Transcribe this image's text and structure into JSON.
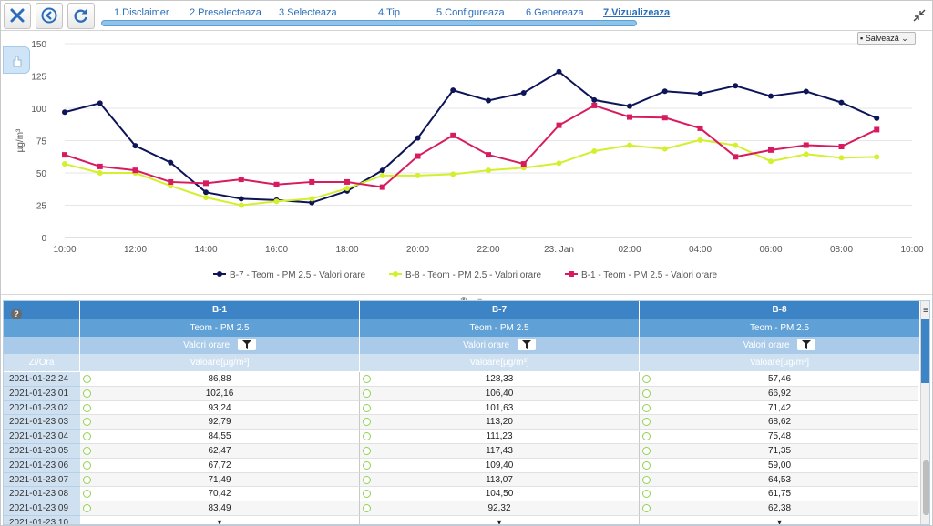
{
  "toolbar": {
    "close_icon": "close-icon",
    "back_icon": "back-circle-icon",
    "refresh_icon": "refresh-icon",
    "steps": [
      {
        "label": "1.Disclaimer"
      },
      {
        "label": "2.Preselecteaza"
      },
      {
        "label": "3.Selecteaza"
      },
      {
        "label": "4.Tip"
      },
      {
        "label": "5.Configureaza"
      },
      {
        "label": "6.Genereaza"
      },
      {
        "label": "7.Vizualizeaza"
      }
    ],
    "active_step": 7,
    "collapse_icon": "collapse-arrows-icon"
  },
  "chart_panel": {
    "save_label": "Salvează",
    "side_tab_icon": "chart-panel-toggle-icon"
  },
  "chart_data": {
    "type": "line",
    "ylabel": "µg/m³",
    "ylim": [
      0,
      150
    ],
    "yticks": [
      "0",
      "25",
      "50",
      "75",
      "100",
      "125",
      "150"
    ],
    "xticks": [
      "10:00",
      "12:00",
      "14:00",
      "16:00",
      "18:00",
      "20:00",
      "22:00",
      "23. Jan",
      "02:00",
      "04:00",
      "06:00",
      "08:00",
      "10:00"
    ],
    "x": [
      "10:00",
      "11:00",
      "12:00",
      "13:00",
      "14:00",
      "15:00",
      "16:00",
      "17:00",
      "18:00",
      "19:00",
      "20:00",
      "21:00",
      "22:00",
      "23:00",
      "00:00",
      "01:00",
      "02:00",
      "03:00",
      "04:00",
      "05:00",
      "06:00",
      "07:00",
      "08:00",
      "09:00"
    ],
    "grid": true,
    "legend_position": "bottom",
    "series": [
      {
        "name": "B-7 - Teom - PM 2.5 - Valori orare",
        "color": "#0d1458",
        "values": [
          97,
          104,
          71,
          58,
          35,
          30,
          29,
          27,
          36,
          52,
          77,
          114,
          106,
          112,
          128.33,
          106.4,
          101.63,
          113.2,
          111.23,
          117.43,
          109.4,
          113.07,
          104.5,
          92.32
        ]
      },
      {
        "name": "B-8 - Teom - PM 2.5 - Valori orare",
        "color": "#d4ef2d",
        "values": [
          57,
          50,
          50,
          40,
          31,
          25,
          28,
          30,
          38,
          48,
          48,
          49,
          52,
          54,
          57.46,
          66.92,
          71.42,
          68.62,
          75.48,
          71.35,
          59.0,
          64.53,
          61.75,
          62.38
        ]
      },
      {
        "name": "B-1 - Teom - PM 2.5 - Valori orare",
        "color": "#d81b5f",
        "values": [
          64,
          55,
          52,
          43,
          42,
          45,
          41,
          43,
          43,
          39,
          63,
          79,
          64,
          57,
          86.88,
          102.16,
          93.24,
          92.79,
          84.55,
          62.47,
          67.72,
          71.49,
          70.42,
          83.49
        ]
      }
    ]
  },
  "grid": {
    "help_icon": "help-icon",
    "columns": [
      {
        "station": "B-1",
        "param": "Teom - PM 2.5",
        "agg": "Valori orare",
        "unit": "Valoare[µg/m³]"
      },
      {
        "station": "B-7",
        "param": "Teom - PM 2.5",
        "agg": "Valori orare",
        "unit": "Valoare[µg/m³]"
      },
      {
        "station": "B-8",
        "param": "Teom - PM 2.5",
        "agg": "Valori orare",
        "unit": "Valoare[µg/m³]"
      }
    ],
    "date_header": "Zi/Ora",
    "filter_icon": "filter-icon",
    "menu_icon": "grid-menu-icon",
    "rows": [
      {
        "date": "2021-01-22 24",
        "v": [
          "86,88",
          "128,33",
          "57,46"
        ]
      },
      {
        "date": "2021-01-23 01",
        "v": [
          "102,16",
          "106,40",
          "66,92"
        ]
      },
      {
        "date": "2021-01-23 02",
        "v": [
          "93,24",
          "101,63",
          "71,42"
        ]
      },
      {
        "date": "2021-01-23 03",
        "v": [
          "92,79",
          "113,20",
          "68,62"
        ]
      },
      {
        "date": "2021-01-23 04",
        "v": [
          "84,55",
          "111,23",
          "75,48"
        ]
      },
      {
        "date": "2021-01-23 05",
        "v": [
          "62,47",
          "117,43",
          "71,35"
        ]
      },
      {
        "date": "2021-01-23 06",
        "v": [
          "67,72",
          "109,40",
          "59,00"
        ]
      },
      {
        "date": "2021-01-23 07",
        "v": [
          "71,49",
          "113,07",
          "64,53"
        ]
      },
      {
        "date": "2021-01-23 08",
        "v": [
          "70,42",
          "104,50",
          "61,75"
        ]
      },
      {
        "date": "2021-01-23 09",
        "v": [
          "83,49",
          "92,32",
          "62,38"
        ]
      },
      {
        "date": "2021-01-23 10",
        "v": [
          "▾",
          "▾",
          "▾"
        ]
      }
    ]
  }
}
